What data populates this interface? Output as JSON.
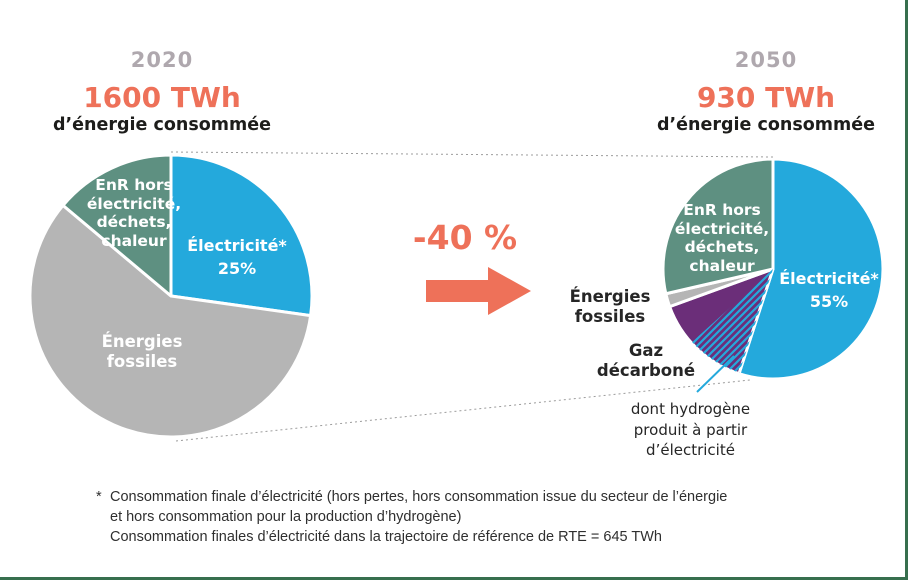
{
  "colors": {
    "accent_orange": "#EE7159",
    "electricity_blue": "#24A9DC",
    "renewables_green": "#5E9081",
    "fossil_gray": "#B5B5B5",
    "gas_purple": "#6B2E79",
    "year_gray": "#AFA8AE",
    "text_dark": "#1D1D1B",
    "frame_green": "#376F4E"
  },
  "left_panel": {
    "year": "2020",
    "amount": "1600 TWh",
    "caption": "d’énergie consommée"
  },
  "right_panel": {
    "year": "2050",
    "amount": "930 TWh",
    "caption": "d’énergie consommée"
  },
  "transition": {
    "label": "-40 %"
  },
  "chart_data": [
    {
      "type": "pie",
      "year": "2020",
      "total": "1600 TWh",
      "center": [
        171,
        296
      ],
      "radius": 141,
      "slices": [
        {
          "id": "electricite",
          "label_lines": [
            "Électricité*",
            "25%"
          ],
          "pct_shown": 25,
          "start_deg": 0,
          "end_deg": 98,
          "color": "#24A9DC"
        },
        {
          "id": "energies-fossiles",
          "label_lines": [
            "Énergies",
            "fossiles"
          ],
          "start_deg": 98,
          "end_deg": 310,
          "color": "#B5B5B5"
        },
        {
          "id": "enr-hors-electricite",
          "label_lines": [
            "EnR hors",
            "électricité,",
            "déchets,",
            "chaleur"
          ],
          "start_deg": 310,
          "end_deg": 360,
          "color": "#5E9081"
        }
      ]
    },
    {
      "type": "pie",
      "year": "2050",
      "total": "930 TWh",
      "center": [
        773,
        269
      ],
      "radius": 110,
      "slices": [
        {
          "id": "electricite",
          "label_lines": [
            "Électricité*",
            "55%"
          ],
          "pct_shown": 55,
          "start_deg": 0,
          "end_deg": 198,
          "color": "#24A9DC"
        },
        {
          "id": "gaz-decarbone",
          "label_lines": [
            "Gaz",
            "décarboné"
          ],
          "start_deg": 198,
          "end_deg": 250,
          "color": "#6B2E79",
          "label_outside": true
        },
        {
          "id": "energies-fossiles",
          "label_lines": [
            "Énergies",
            "fossiles"
          ],
          "start_deg": 250,
          "end_deg": 257,
          "color": "#B5B5B5",
          "label_outside": true
        },
        {
          "id": "enr-hors-electricite",
          "label_lines": [
            "EnR hors",
            "électricité,",
            "déchets,",
            "chaleur"
          ],
          "start_deg": 257,
          "end_deg": 360,
          "color": "#5E9081"
        }
      ],
      "hydrogen_hatch": {
        "slice": "gaz-decarbone",
        "start_deg": 198,
        "end_deg": 228,
        "note_lines": [
          "dont hydrogène",
          "produit à partir",
          "d’électricité"
        ]
      }
    }
  ],
  "footnote": {
    "marker": "*",
    "lines": [
      "Consommation finale d’électricité (hors pertes, hors consommation issue du secteur de l’énergie",
      "et hors consommation pour la production d’hydrogène)",
      "Consommation finales d’électricité dans la trajectoire de référence de RTE = 645 TWh"
    ]
  }
}
